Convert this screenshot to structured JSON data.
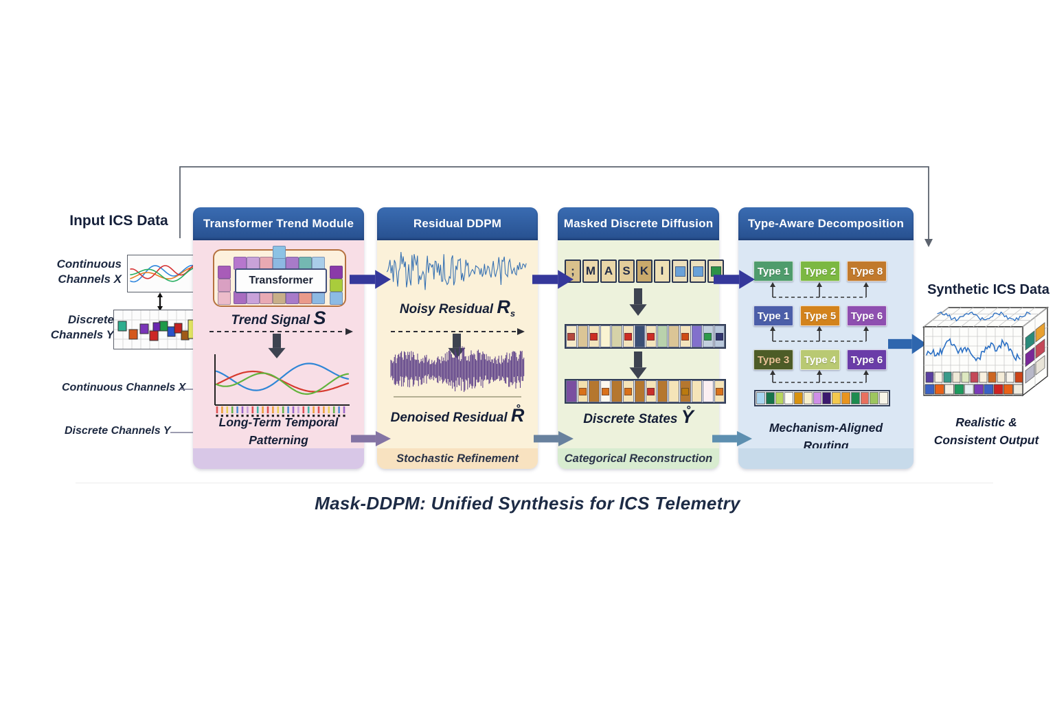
{
  "diagram_title": "Mask-DDPM: Unified Synthesis for ICS Telemetry",
  "input": {
    "heading": "Input ICS Data",
    "continuous_label": [
      "Continuous",
      "Channels X"
    ],
    "discrete_label": [
      "Discrete",
      "Channels Y"
    ],
    "continuous_inline_label": "Continuous Channels X",
    "discrete_inline_label": "Discrete Channels Y",
    "continuous_wave_colors": [
      "#2e86de",
      "#e67e22",
      "#d63031",
      "#27ae60"
    ],
    "discrete_cell_colors": [
      "#2fae8f",
      "#d4581c",
      "#7a35b8",
      "#cc2727",
      "#1f9a49",
      "#2a52c8",
      "#c22222",
      "#a05a18",
      "#e3e660",
      "#3a63c8",
      "#6a28b0"
    ]
  },
  "feedback_line_color": "#5c636e",
  "arrow_colors": {
    "primary": "#35389b",
    "stage2": "#8474a4",
    "stage3": "#68819e",
    "stage4": "#5d8fb0",
    "output": "#2e66ae",
    "down": "#3d4350",
    "label_arrow": "#7c7c96"
  },
  "panels": [
    {
      "header": "Transformer Trend Module",
      "body_color": "#f8dee6",
      "footer_color": "#d8c7e7",
      "footer_label": "",
      "items": {
        "transformer_label": "Transformer",
        "trend_signal_label": "Trend Signal",
        "trend_signal_symbol": "S",
        "caption": [
          "Long-Term Temporal",
          "Patterning"
        ],
        "tiles": {
          "top": [
            "#b777cd",
            "#c9a2d8",
            "#e8a9b2",
            "#8db9e2",
            "#a87bc9",
            "#74b8b2",
            "#a9cde9"
          ],
          "peak": "#8cc2e4",
          "left": [
            "#a85cb8",
            "#d9a0c2",
            "#ecbcca"
          ],
          "right": [
            "#8a3aa8",
            "#a9cc3c",
            "#8cbbe4"
          ],
          "bottom": [
            "#a86cc0",
            "#c9a2da",
            "#e9aab4",
            "#c8af88",
            "#a87bc9",
            "#ea9a8a",
            "#8db9e2"
          ]
        },
        "trend_series_colors": [
          "#2f86d6",
          "#d63a2e",
          "#62b33c"
        ],
        "tick_colors": [
          "#e05252",
          "#eda23a",
          "#ead15a",
          "#67b54b",
          "#4f8fd6",
          "#9a66c9",
          "#c9a2da",
          "#e05252",
          "#46b8a8",
          "#eda23a"
        ]
      }
    },
    {
      "header": "Residual DDPM",
      "body_color": "#fbf1d9",
      "footer_color": "#f8e2c0",
      "footer_label": "Stochastic Refinement",
      "items": {
        "noisy_label": "Noisy Residual",
        "noisy_symbol": "R",
        "noisy_sub": "s",
        "noisy_wave_color": "#3570b2",
        "denoised_label": "Denoised Residual",
        "denoised_symbol": "R̊",
        "denoised_wave_color": "#5a3d87"
      }
    },
    {
      "header": "Masked Discrete Diffusion",
      "body_color": "#edf2dc",
      "footer_color": "#d8ecd0",
      "footer_label": "Categorical Reconstruction",
      "items": {
        "mask_tiles": [
          {
            "ch": ";",
            "bg": "#d9c18c"
          },
          {
            "ch": "M",
            "bg": "#ecd9ad"
          },
          {
            "ch": "A",
            "bg": "#ead7a8"
          },
          {
            "ch": "S",
            "bg": "#e3cd9a"
          },
          {
            "ch": "K",
            "bg": "#c9a96b"
          },
          {
            "ch": "I",
            "bg": "#eedfb5"
          },
          {
            "sq": "#6aa1d8",
            "bg": "#ece0bd"
          },
          {
            "sq": "#6aa1d8",
            "bg": "#ece0bd"
          },
          {
            "sq": "#2d9247",
            "bg": "#ece0bd"
          }
        ],
        "noised_tiles": [
          {
            "bg": "#f5e9c8",
            "sq": "#b5483c"
          },
          {
            "bg": "#dbc596"
          },
          {
            "bg": "#f3e4bd",
            "sq": "#cc2d24"
          },
          {
            "bg": "#faf3d2"
          },
          {
            "bg": "#d6d2a8"
          },
          {
            "bg": "#f3e4bd",
            "sq": "#cc2d24"
          },
          {
            "bg": "#3c4f74"
          },
          {
            "bg": "#f3e4bd",
            "sq": "#cc2d24"
          },
          {
            "bg": "#b9d2ac"
          },
          {
            "bg": "#dbc596"
          },
          {
            "bg": "#f3e4bd",
            "sq": "#cf4c15"
          },
          {
            "bg": "#8270cc"
          },
          {
            "bg": "#c3cfdd",
            "sq": "#2f9a4b"
          },
          {
            "bg": "#b9c8db",
            "sq": "#31356e"
          }
        ],
        "state_tiles": [
          {
            "bg": "#7a4fa0"
          },
          {
            "bg": "#f3e0ad",
            "sq": "#d9711a"
          },
          {
            "bg": "#b5772f"
          },
          {
            "bg": "#fdf9ef",
            "sq": "#d9711a"
          },
          {
            "bg": "#b5772f"
          },
          {
            "bg": "#f5e4b8",
            "sq": "#d9711a"
          },
          {
            "bg": "#b5772f"
          },
          {
            "bg": "#f5e4b8",
            "sq": "#c9302a"
          },
          {
            "bg": "#b5772f"
          },
          {
            "bg": "#f5e4b8"
          },
          {
            "bg": "#b5772f",
            "sq": "#bb7a0e"
          },
          {
            "bg": "#f5e4b8"
          },
          {
            "bg": "#fbeff2"
          },
          {
            "bg": "#f5e4b8",
            "sq": "#d9711a"
          }
        ],
        "discrete_label": "Discrete States",
        "discrete_symbol": "Y̊"
      }
    },
    {
      "header": "Type-Aware Decomposition",
      "body_color": "#dbe7f4",
      "footer_color": "#c7daea",
      "footer_label": "",
      "items": {
        "chips": [
          [
            {
              "label": "Type 1",
              "bg": "#4f9c6c"
            },
            {
              "label": "Type 2",
              "bg": "#7cb842"
            },
            {
              "label": "Type 8",
              "bg": "#c1792c"
            }
          ],
          [
            {
              "label": "Type 1",
              "bg": "#4b5ea9"
            },
            {
              "label": "Type 5",
              "bg": "#d3831c"
            },
            {
              "label": "Type 6",
              "bg": "#8e4fb0"
            }
          ],
          [
            {
              "label": "Type 3",
              "bg": "#4d5c27",
              "fg": "#e9c296"
            },
            {
              "label": "Type 4",
              "bg": "#b9c973"
            },
            {
              "label": "Type 6",
              "bg": "#6a3ca8"
            }
          ]
        ],
        "strip_colors": [
          "#a9d5f0",
          "#17734a",
          "#b8d55e",
          "#fdfcf2",
          "#d89210",
          "#f6eecb",
          "#cf8fe8",
          "#3b1a6d",
          "#f3c94e",
          "#e8941f",
          "#1d8b50",
          "#e8705f",
          "#9dc55f",
          "#f7f4e8"
        ],
        "caption": [
          "Mechanism-Aligned",
          "Routing"
        ]
      }
    }
  ],
  "output": {
    "heading": "Synthetic ICS Data",
    "caption": [
      "Realistic &",
      "Consistent Output"
    ],
    "cube_wave_color": "#2a6fc4",
    "front_row_colors": [
      "#5a3fa0",
      "#f8f4e8",
      "#3a9a8a",
      "#f0ead8",
      "#dde8c0",
      "#c44858",
      "#f8f0e0",
      "#cc6622",
      "#f4ecd8",
      "#f8f4ec",
      "#cc4418"
    ],
    "bottom_row_colors": [
      "#3a62c4",
      "#e86118",
      "#f4f0e6",
      "#1e9a5e",
      "#e8f0f4",
      "#7a3ab8",
      "#3a62c4",
      "#cc2222",
      "#e86118",
      "#f0ece0"
    ],
    "side_cell_colors": [
      "#2a8a7a",
      "#e8a030",
      "#7a2898",
      "#c44858",
      "#b8b8c8",
      "#e8e4d8"
    ]
  }
}
